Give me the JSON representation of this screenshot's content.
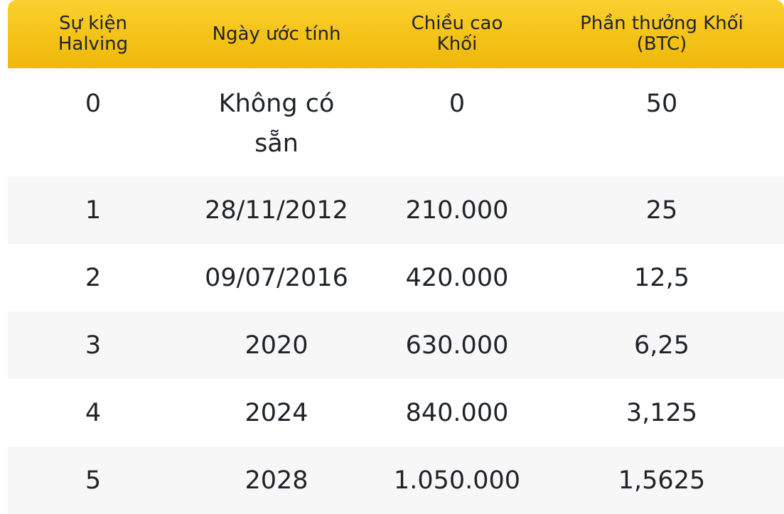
{
  "table": {
    "headers": [
      "Sự kiện\nHalving",
      "Ngày ước tính",
      "Chiều cao\nKhối",
      "Phần thưởng Khối\n(BTC)"
    ],
    "rows": [
      [
        "0",
        "Không có sẵn",
        "0",
        "50"
      ],
      [
        "1",
        "28/11/2012",
        "210.000",
        "25"
      ],
      [
        "2",
        "09/07/2016",
        "420.000",
        "12,5"
      ],
      [
        "3",
        "2020",
        "630.000",
        "6,25"
      ],
      [
        "4",
        "2024",
        "840.000",
        "3,125"
      ],
      [
        "5",
        "2028",
        "1.050.000",
        "1,5625"
      ]
    ]
  },
  "colors": {
    "header_yellow": "#f4c217",
    "row_alt": "#f7f7f7",
    "text": "#1e2329"
  }
}
